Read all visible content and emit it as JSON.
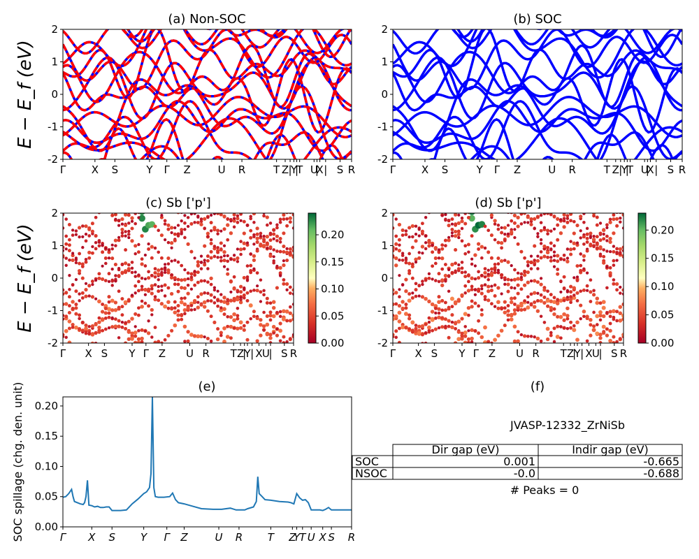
{
  "chart_data": [
    {
      "id": "a",
      "type": "line",
      "title": "(a) Non-SOC",
      "ylabel": "E − E_f (eV)",
      "ylim": [
        -2,
        2
      ],
      "yticks": [
        "-2",
        "-1",
        "0",
        "1",
        "2"
      ],
      "xticks": [
        "Γ",
        "X",
        "S",
        "Y",
        "Γ",
        "Z",
        "U",
        "R",
        "T",
        "Z",
        "|",
        "Y",
        "|",
        "T",
        "U",
        "|",
        "X",
        "|",
        "S",
        "R"
      ],
      "xtick_pos": [
        0,
        0.111,
        0.18,
        0.3,
        0.36,
        0.43,
        0.55,
        0.62,
        0.74,
        0.77,
        0.787,
        0.8,
        0.81,
        0.82,
        0.87,
        0.88,
        0.89,
        0.91,
        0.96,
        1.0
      ],
      "series": [
        {
          "color": "#0000ff",
          "style": "solid"
        },
        {
          "color": "#ff0000",
          "style": "dashed"
        }
      ]
    },
    {
      "id": "b",
      "type": "line",
      "title": "(b) SOC",
      "ylim": [
        -2,
        2
      ],
      "yticks": [
        "-2",
        "-1",
        "0",
        "1",
        "2"
      ],
      "xticks": [
        "Γ",
        "X",
        "S",
        "Y",
        "Γ",
        "Z",
        "U",
        "R",
        "T",
        "Z",
        "|",
        "Y",
        "|",
        "T",
        "U",
        "|",
        "X",
        "|",
        "S",
        "R"
      ],
      "xtick_pos": [
        0,
        0.111,
        0.18,
        0.3,
        0.36,
        0.43,
        0.55,
        0.62,
        0.74,
        0.77,
        0.787,
        0.8,
        0.81,
        0.82,
        0.87,
        0.88,
        0.89,
        0.91,
        0.96,
        1.0
      ],
      "series": [
        {
          "color": "#0000ff",
          "style": "solid"
        }
      ]
    },
    {
      "id": "c",
      "type": "scatter",
      "title": "(c)  Sb ['p']",
      "ylabel": "E − E_f (eV)",
      "ylim": [
        -2,
        2
      ],
      "yticks": [
        "-2",
        "-1",
        "0",
        "1",
        "2"
      ],
      "xticks": [
        "Γ",
        "X",
        "S",
        "Y",
        "Γ",
        "Z",
        "U",
        "R",
        "T",
        "Z",
        "|",
        "Y",
        "|",
        "X",
        "U",
        "|",
        "S",
        "R"
      ],
      "xtick_pos": [
        0,
        0.111,
        0.18,
        0.3,
        0.36,
        0.43,
        0.55,
        0.62,
        0.74,
        0.77,
        0.787,
        0.8,
        0.82,
        0.85,
        0.88,
        0.9,
        0.96,
        1.0
      ],
      "colorbar": {
        "ticks": [
          "0.00",
          "0.05",
          "0.10",
          "0.15",
          "0.20"
        ],
        "range": [
          0,
          0.24
        ],
        "colormap": "RdYlGn"
      }
    },
    {
      "id": "d",
      "type": "scatter",
      "title": "(d) Sb ['p']",
      "ylim": [
        -2,
        2
      ],
      "yticks": [
        "-2",
        "-1",
        "0",
        "1",
        "2"
      ],
      "xticks": [
        "Γ",
        "X",
        "S",
        "Y",
        "Γ",
        "Z",
        "U",
        "R",
        "T",
        "Z",
        "|",
        "Y",
        "|",
        "X",
        "U",
        "|",
        "S",
        "R"
      ],
      "xtick_pos": [
        0,
        0.111,
        0.18,
        0.3,
        0.36,
        0.43,
        0.55,
        0.62,
        0.74,
        0.77,
        0.787,
        0.8,
        0.82,
        0.85,
        0.88,
        0.9,
        0.96,
        1.0
      ],
      "colorbar": {
        "ticks": [
          "0.00",
          "0.05",
          "0.10",
          "0.15",
          "0.20"
        ],
        "range": [
          0,
          0.23
        ],
        "colormap": "RdYlGn"
      }
    },
    {
      "id": "e",
      "type": "line",
      "title": "(e)",
      "ylabel": "SOC spillage (chg. den. unit)",
      "ylim": [
        0,
        0.215
      ],
      "yticks": [
        "0.00",
        "0.05",
        "0.10",
        "0.15",
        "0.20"
      ],
      "ytick_values": [
        0,
        0.05,
        0.1,
        0.15,
        0.2
      ],
      "xticks": [
        "Γ",
        "X",
        "S",
        "Y",
        "Γ",
        "Z",
        "U",
        "R",
        "T",
        "Z",
        "Y",
        "T",
        "U",
        "X",
        "S",
        "R"
      ],
      "xtick_pos": [
        0,
        0.1,
        0.17,
        0.28,
        0.36,
        0.42,
        0.54,
        0.61,
        0.72,
        0.795,
        0.81,
        0.83,
        0.86,
        0.9,
        0.93,
        1.0
      ],
      "x": [
        0,
        0.01,
        0.02,
        0.03,
        0.035,
        0.04,
        0.06,
        0.07,
        0.075,
        0.08,
        0.085,
        0.09,
        0.1,
        0.11,
        0.12,
        0.13,
        0.14,
        0.15,
        0.16,
        0.17,
        0.18,
        0.2,
        0.22,
        0.24,
        0.26,
        0.28,
        0.29,
        0.3,
        0.305,
        0.31,
        0.315,
        0.32,
        0.33,
        0.35,
        0.37,
        0.38,
        0.39,
        0.4,
        0.42,
        0.45,
        0.48,
        0.52,
        0.55,
        0.58,
        0.6,
        0.62,
        0.63,
        0.64,
        0.66,
        0.67,
        0.675,
        0.68,
        0.69,
        0.7,
        0.72,
        0.75,
        0.78,
        0.79,
        0.8,
        0.81,
        0.82,
        0.83,
        0.84,
        0.85,
        0.86,
        0.87,
        0.88,
        0.89,
        0.9,
        0.91,
        0.92,
        0.93,
        0.95,
        0.97,
        1.0
      ],
      "series": [
        {
          "color": "#1f77b4",
          "values": [
            0.049,
            0.05,
            0.055,
            0.062,
            0.05,
            0.042,
            0.038,
            0.037,
            0.04,
            0.05,
            0.077,
            0.036,
            0.035,
            0.033,
            0.034,
            0.032,
            0.032,
            0.033,
            0.033,
            0.027,
            0.027,
            0.027,
            0.028,
            0.038,
            0.046,
            0.055,
            0.058,
            0.065,
            0.088,
            0.215,
            0.065,
            0.05,
            0.049,
            0.049,
            0.05,
            0.056,
            0.045,
            0.04,
            0.038,
            0.034,
            0.03,
            0.029,
            0.029,
            0.031,
            0.028,
            0.028,
            0.028,
            0.03,
            0.033,
            0.042,
            0.083,
            0.055,
            0.05,
            0.045,
            0.044,
            0.042,
            0.041,
            0.04,
            0.038,
            0.055,
            0.048,
            0.044,
            0.045,
            0.04,
            0.028,
            0.028,
            0.028,
            0.028,
            0.027,
            0.029,
            0.032,
            0.028,
            0.028,
            0.028,
            0.028
          ]
        }
      ]
    }
  ],
  "panel_f": {
    "title": "(f)",
    "material": "JVASP-12332_ZrNiSb",
    "table": {
      "col_headers": [
        "Dir gap (eV)",
        "Indir gap (eV)"
      ],
      "rows": [
        {
          "label": "SOC",
          "dir": "0.001",
          "indir": "-0.665"
        },
        {
          "label": "NSOC",
          "dir": "-0.0",
          "indir": "-0.688"
        }
      ]
    },
    "peaks": "# Peaks = 0"
  }
}
